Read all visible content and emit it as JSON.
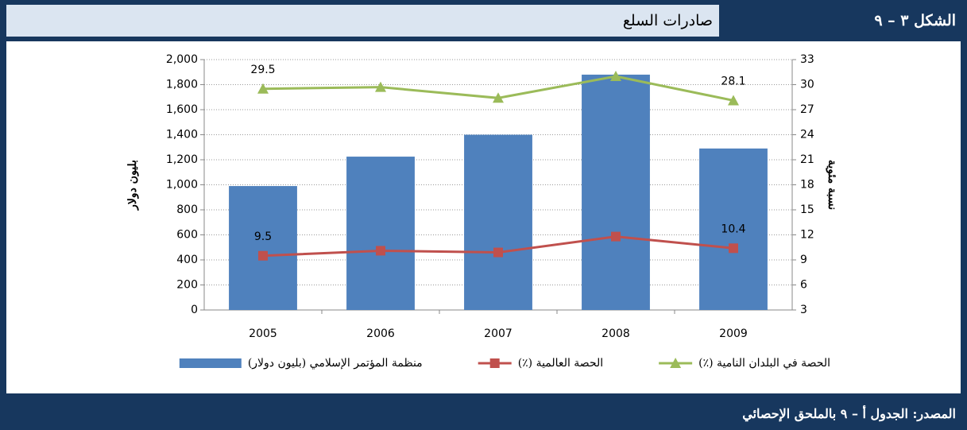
{
  "header": {
    "figure": "الشكل ٣ – ٩",
    "title": "صادرات السلع"
  },
  "footer": {
    "source": "المصدر: الجدول أ – ٩ بالملحق الإحصائي"
  },
  "chart_data": {
    "type": "bar",
    "categories": [
      "2005",
      "2006",
      "2007",
      "2008",
      "2009"
    ],
    "ylabel": "بليون دولار",
    "y2label": "نسبة مئوية",
    "ylim": [
      0,
      2000
    ],
    "yticks": [
      0,
      200,
      400,
      600,
      800,
      {
        "value": 1000,
        "label": "1,000"
      },
      {
        "value": 1200,
        "label": "1,200"
      },
      {
        "value": 1400,
        "label": "1,400"
      },
      {
        "value": 1600,
        "label": "1,600"
      },
      {
        "value": 1800,
        "label": "1,800"
      },
      {
        "value": 2000,
        "label": "2,000"
      }
    ],
    "y2lim": [
      3,
      33
    ],
    "y2ticks": [
      3,
      6,
      9,
      12,
      15,
      18,
      21,
      24,
      27,
      30,
      33
    ],
    "grid": true,
    "series": [
      {
        "name": "منظمة المؤتمر الإسلامي (بليون دولار)",
        "type": "bar",
        "color": "#4f81bd",
        "values": [
          990,
          1225,
          1400,
          1880,
          1290
        ]
      },
      {
        "name": "الحصة العالمية (٪)",
        "type": "line",
        "marker": "square",
        "axis": "y2",
        "color": "#c0504d",
        "values": [
          9.5,
          10.1,
          9.9,
          11.8,
          10.4
        ],
        "value_labels": [
          "9.5",
          null,
          null,
          null,
          "10.4"
        ]
      },
      {
        "name": "الحصة في البلدان النامية (٪)",
        "type": "line",
        "marker": "triangle",
        "axis": "y2",
        "color": "#9bbb59",
        "values": [
          29.5,
          29.7,
          28.4,
          31.0,
          28.1
        ],
        "value_labels": [
          "29.5",
          null,
          null,
          null,
          "28.1"
        ]
      }
    ]
  }
}
